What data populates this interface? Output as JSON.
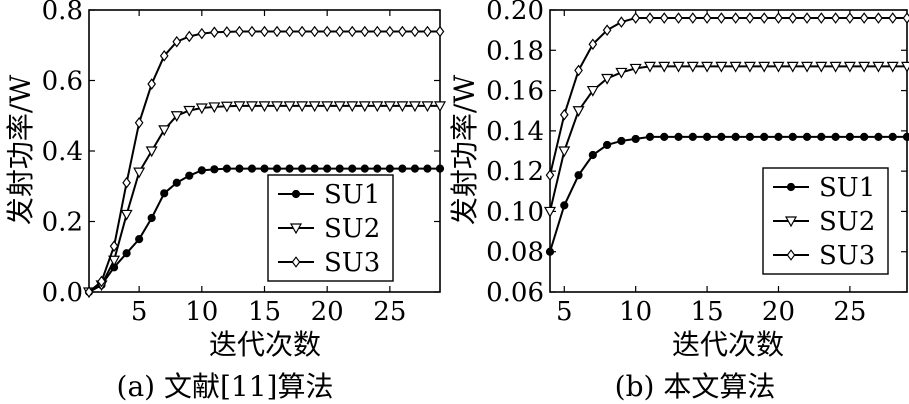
{
  "chart_data": [
    {
      "type": "line",
      "title": "",
      "caption": "(a) 文献[11]算法",
      "xlabel": "迭代次数",
      "ylabel": "发射功率/W",
      "xlim": [
        1,
        29
      ],
      "ylim": [
        0,
        0.8
      ],
      "xticks": [
        5,
        10,
        15,
        20,
        25
      ],
      "xtick_labels": [
        "5",
        "10",
        "15",
        "20",
        "25"
      ],
      "yticks": [
        0,
        0.2,
        0.4,
        0.6,
        0.8
      ],
      "ytick_labels": [
        "0.0",
        "0.2",
        "0.4",
        "0.6",
        "0.8"
      ],
      "grid": false,
      "legend_position": "lower-right",
      "x": [
        1,
        2,
        3,
        4,
        5,
        6,
        7,
        8,
        9,
        10,
        11,
        12,
        13,
        14,
        15,
        16,
        17,
        18,
        19,
        20,
        21,
        22,
        23,
        24,
        25,
        26,
        27,
        28,
        29
      ],
      "series": [
        {
          "name": "SU1",
          "marker": "circle",
          "values": [
            0.0,
            0.02,
            0.07,
            0.11,
            0.15,
            0.21,
            0.28,
            0.31,
            0.33,
            0.345,
            0.348,
            0.35,
            0.35,
            0.35,
            0.35,
            0.35,
            0.35,
            0.35,
            0.35,
            0.35,
            0.35,
            0.35,
            0.35,
            0.35,
            0.35,
            0.35,
            0.35,
            0.35,
            0.35
          ]
        },
        {
          "name": "SU2",
          "marker": "triangle-down",
          "values": [
            0.0,
            0.02,
            0.09,
            0.22,
            0.34,
            0.4,
            0.46,
            0.5,
            0.515,
            0.522,
            0.525,
            0.527,
            0.528,
            0.528,
            0.528,
            0.528,
            0.528,
            0.528,
            0.528,
            0.528,
            0.528,
            0.528,
            0.528,
            0.528,
            0.528,
            0.528,
            0.528,
            0.528,
            0.528
          ]
        },
        {
          "name": "SU3",
          "marker": "diamond",
          "values": [
            0.0,
            0.03,
            0.13,
            0.31,
            0.48,
            0.59,
            0.67,
            0.71,
            0.725,
            0.733,
            0.737,
            0.738,
            0.739,
            0.739,
            0.739,
            0.739,
            0.739,
            0.739,
            0.739,
            0.739,
            0.739,
            0.739,
            0.739,
            0.739,
            0.739,
            0.739,
            0.739,
            0.739,
            0.739
          ]
        }
      ]
    },
    {
      "type": "line",
      "title": "",
      "caption": "(b) 本文算法",
      "xlabel": "迭代次数",
      "ylabel": "发射功率/W",
      "xlim": [
        4,
        29
      ],
      "ylim": [
        0.06,
        0.2
      ],
      "xticks": [
        5,
        10,
        15,
        20,
        25
      ],
      "xtick_labels": [
        "5",
        "10",
        "15",
        "20",
        "25"
      ],
      "yticks": [
        0.06,
        0.08,
        0.1,
        0.12,
        0.14,
        0.16,
        0.18,
        0.2
      ],
      "ytick_labels": [
        "0.06",
        "0.08",
        "0.10",
        "0.12",
        "0.14",
        "0.16",
        "0.18",
        "0.20"
      ],
      "grid": false,
      "legend_position": "lower-right",
      "x": [
        4,
        5,
        6,
        7,
        8,
        9,
        10,
        11,
        12,
        13,
        14,
        15,
        16,
        17,
        18,
        19,
        20,
        21,
        22,
        23,
        24,
        25,
        26,
        27,
        28,
        29
      ],
      "series": [
        {
          "name": "SU1",
          "marker": "circle",
          "values": [
            0.08,
            0.103,
            0.118,
            0.128,
            0.133,
            0.135,
            0.136,
            0.137,
            0.137,
            0.137,
            0.137,
            0.137,
            0.137,
            0.137,
            0.137,
            0.137,
            0.137,
            0.137,
            0.137,
            0.137,
            0.137,
            0.137,
            0.137,
            0.137,
            0.137,
            0.137
          ]
        },
        {
          "name": "SU2",
          "marker": "triangle-down",
          "values": [
            0.1,
            0.13,
            0.15,
            0.16,
            0.166,
            0.169,
            0.171,
            0.172,
            0.172,
            0.172,
            0.172,
            0.172,
            0.172,
            0.172,
            0.172,
            0.172,
            0.172,
            0.172,
            0.172,
            0.172,
            0.172,
            0.172,
            0.172,
            0.172,
            0.172,
            0.172
          ]
        },
        {
          "name": "SU3",
          "marker": "diamond",
          "values": [
            0.118,
            0.148,
            0.17,
            0.183,
            0.19,
            0.194,
            0.196,
            0.196,
            0.196,
            0.196,
            0.196,
            0.196,
            0.196,
            0.196,
            0.196,
            0.196,
            0.196,
            0.196,
            0.196,
            0.196,
            0.196,
            0.196,
            0.196,
            0.196,
            0.196,
            0.196
          ]
        }
      ]
    }
  ]
}
